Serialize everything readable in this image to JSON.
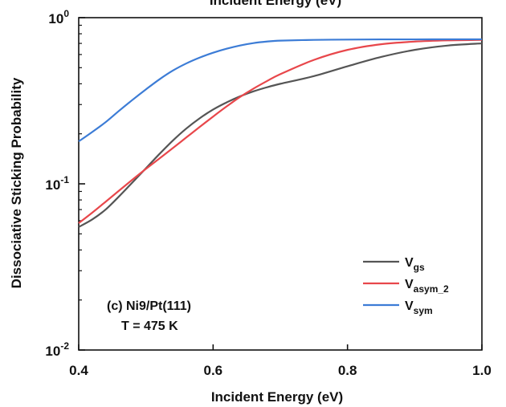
{
  "chart_data": {
    "type": "line",
    "title": "Incident Energy (eV)",
    "xlabel": "Incident Energy (eV)",
    "ylabel": "Dissociative Sticking Probability",
    "xlim": [
      0.4,
      1.0
    ],
    "ylim": [
      0.01,
      1
    ],
    "yscale": "log",
    "grid": false,
    "legend_position": "bottom-right",
    "x_ticks": [
      {
        "value": 0.4,
        "label": "0.4"
      },
      {
        "value": 0.6,
        "label": "0.6"
      },
      {
        "value": 0.8,
        "label": "0.8"
      },
      {
        "value": 1.0,
        "label": "1.0"
      }
    ],
    "y_ticks": [
      {
        "value": 1,
        "base": "10",
        "exp": "0"
      },
      {
        "value": 0.1,
        "base": "10",
        "exp": "-1"
      },
      {
        "value": 0.01,
        "base": "10",
        "exp": "-2"
      }
    ],
    "annotations": [
      "(c) Ni9/Pt(111)",
      "T = 475 K"
    ],
    "series": [
      {
        "name": "V",
        "sub": "gs",
        "color": "#555555",
        "x": [
          0.4,
          0.42,
          0.44,
          0.46,
          0.48,
          0.5,
          0.52,
          0.54,
          0.56,
          0.58,
          0.6,
          0.62,
          0.64,
          0.66,
          0.68,
          0.7,
          0.75,
          0.8,
          0.85,
          0.9,
          0.95,
          1.0
        ],
        "y": [
          0.055,
          0.061,
          0.07,
          0.084,
          0.102,
          0.124,
          0.151,
          0.182,
          0.215,
          0.248,
          0.28,
          0.309,
          0.336,
          0.36,
          0.381,
          0.4,
          0.445,
          0.51,
          0.58,
          0.64,
          0.68,
          0.7
        ]
      },
      {
        "name": "V",
        "sub": "asym_2",
        "color": "#e8474b",
        "x": [
          0.4,
          0.42,
          0.44,
          0.46,
          0.48,
          0.5,
          0.52,
          0.54,
          0.56,
          0.58,
          0.6,
          0.62,
          0.64,
          0.66,
          0.68,
          0.7,
          0.75,
          0.8,
          0.85,
          0.9,
          0.95,
          1.0
        ],
        "y": [
          0.058,
          0.067,
          0.078,
          0.091,
          0.106,
          0.123,
          0.142,
          0.164,
          0.19,
          0.22,
          0.254,
          0.292,
          0.333,
          0.374,
          0.415,
          0.457,
          0.557,
          0.64,
          0.692,
          0.718,
          0.73,
          0.735
        ]
      },
      {
        "name": "V",
        "sub": "sym",
        "color": "#3c7cd6",
        "x": [
          0.4,
          0.42,
          0.44,
          0.46,
          0.48,
          0.5,
          0.52,
          0.54,
          0.56,
          0.58,
          0.6,
          0.62,
          0.64,
          0.66,
          0.68,
          0.7,
          0.75,
          0.8,
          0.85,
          0.9,
          0.95,
          1.0
        ],
        "y": [
          0.18,
          0.205,
          0.235,
          0.275,
          0.32,
          0.37,
          0.425,
          0.48,
          0.53,
          0.575,
          0.615,
          0.65,
          0.68,
          0.703,
          0.718,
          0.727,
          0.735,
          0.738,
          0.74,
          0.74,
          0.741,
          0.741
        ]
      }
    ]
  }
}
